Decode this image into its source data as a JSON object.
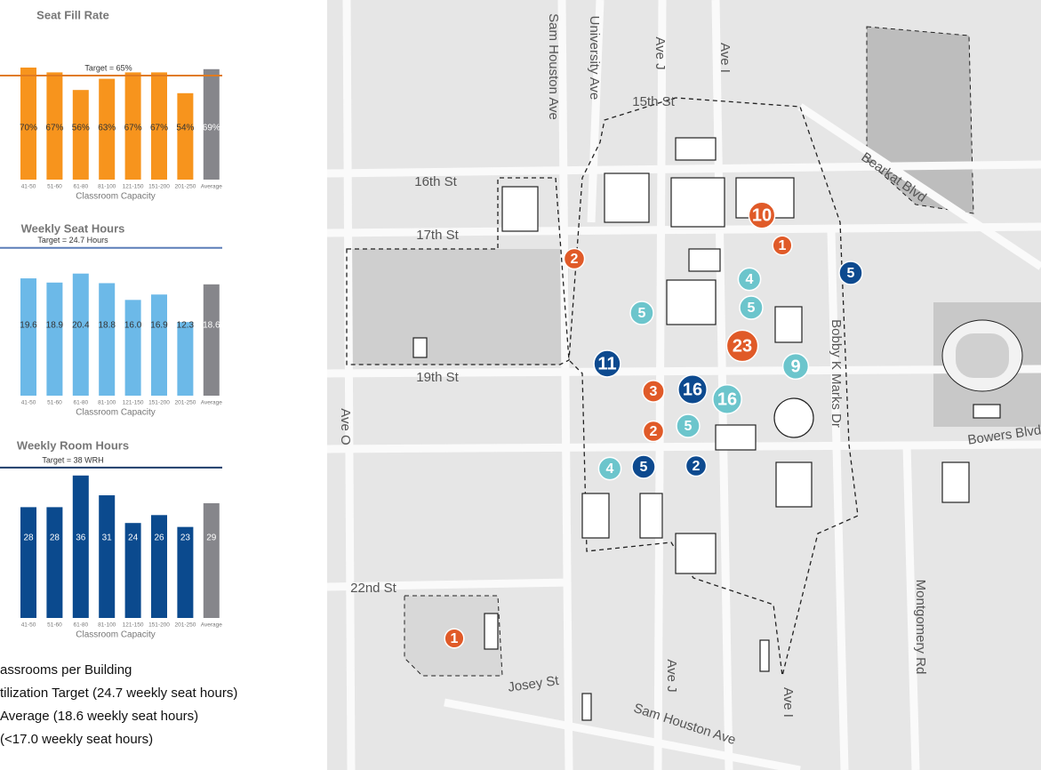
{
  "chart_data": [
    {
      "type": "bar",
      "title": "Seat Fill Rate",
      "xlabel": "Classroom Capacity",
      "categories": [
        "41-50",
        "51-60",
        "61-80",
        "81-100",
        "121-150",
        "151-200",
        "201-250",
        "Average"
      ],
      "values": [
        70,
        67,
        56,
        63,
        67,
        67,
        54,
        69
      ],
      "value_labels": [
        "70%",
        "67%",
        "56%",
        "63%",
        "67%",
        "67%",
        "54%",
        "69%"
      ],
      "colors": [
        "#f7941d",
        "#f7941d",
        "#f7941d",
        "#f7941d",
        "#f7941d",
        "#f7941d",
        "#f7941d",
        "#86868b"
      ],
      "ylim": [
        0,
        100
      ],
      "target": {
        "value": 65,
        "label": "Target = 65%"
      },
      "target_color": "#e07b20"
    },
    {
      "type": "bar",
      "title": "Weekly Seat Hours",
      "xlabel": "Classroom Capacity",
      "categories": [
        "41-50",
        "51-60",
        "61-80",
        "81-100",
        "121-150",
        "151-200",
        "201-250",
        "Average"
      ],
      "values": [
        19.6,
        18.9,
        20.4,
        18.8,
        16.0,
        16.9,
        12.3,
        18.6
      ],
      "value_labels": [
        "19.6",
        "18.9",
        "20.4",
        "18.8",
        "16.0",
        "16.9",
        "12.3",
        "18.6"
      ],
      "colors": [
        "#6cb9e8",
        "#6cb9e8",
        "#6cb9e8",
        "#6cb9e8",
        "#6cb9e8",
        "#6cb9e8",
        "#6cb9e8",
        "#86868b"
      ],
      "ylim": [
        0,
        26
      ],
      "target": {
        "value": 24.7,
        "label": "Target = 24.7 Hours"
      },
      "target_color": "#5b7db8"
    },
    {
      "type": "bar",
      "title": "Weekly Room Hours",
      "xlabel": "Classroom Capacity",
      "categories": [
        "41-50",
        "51-60",
        "61-80",
        "81-100",
        "121-150",
        "151-200",
        "201-250",
        "Average"
      ],
      "values": [
        28,
        28,
        36,
        31,
        24,
        26,
        23,
        29
      ],
      "colors": [
        "#0b4a8e",
        "#0b4a8e",
        "#0b4a8e",
        "#0b4a8e",
        "#0b4a8e",
        "#0b4a8e",
        "#0b4a8e",
        "#86868b"
      ],
      "ylim": [
        0,
        40
      ],
      "target": {
        "value": 38,
        "label": "Target = 38 WRH"
      },
      "target_color": "#1d3b6a"
    }
  ],
  "legend": [
    "assrooms per Building",
    "tilization Target (24.7 weekly seat hours)",
    " Average (18.6 weekly seat hours)",
    "(<17.0 weekly seat hours)"
  ],
  "map": {
    "street_labels": [
      "Sam Houston Ave",
      "University Ave",
      "Ave J",
      "Ave I",
      "15th St",
      "16th St",
      "17th St",
      "19th St",
      "Ave O",
      "22nd St",
      "Josey St",
      "Sam Houston Ave",
      "Ave J",
      "Ave I",
      "Bearkat Blvd",
      "Bobby K Marks Dr",
      "Bowers Blvd",
      "Montgomery Rd"
    ],
    "markers": [
      {
        "label": "10",
        "color": "#e05a28"
      },
      {
        "label": "1",
        "color": "#e05a28"
      },
      {
        "label": "2",
        "color": "#e05a28"
      },
      {
        "label": "4",
        "color": "#6cc5cc"
      },
      {
        "label": "5",
        "color": "#6cc5cc"
      },
      {
        "label": "5",
        "color": "#6cc5cc"
      },
      {
        "label": "5",
        "color": "#0d4a8f"
      },
      {
        "label": "23",
        "color": "#e05a28"
      },
      {
        "label": "9",
        "color": "#6cc5cc"
      },
      {
        "label": "11",
        "color": "#0d4a8f"
      },
      {
        "label": "3",
        "color": "#e05a28"
      },
      {
        "label": "16",
        "color": "#0d4a8f"
      },
      {
        "label": "16",
        "color": "#6cc5cc"
      },
      {
        "label": "2",
        "color": "#e05a28"
      },
      {
        "label": "5",
        "color": "#6cc5cc"
      },
      {
        "label": "4",
        "color": "#6cc5cc"
      },
      {
        "label": "5",
        "color": "#0d4a8f"
      },
      {
        "label": "2",
        "color": "#0d4a8f"
      },
      {
        "label": "1",
        "color": "#e05a28"
      }
    ]
  }
}
